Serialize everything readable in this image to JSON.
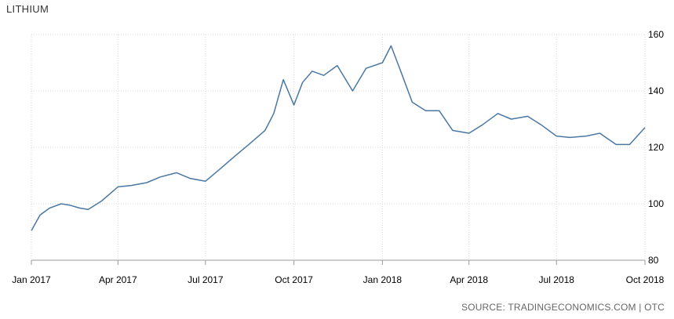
{
  "title": "LITHIUM",
  "source": "SOURCE: TRADINGECONOMICS.COM | OTC",
  "chart_data": {
    "type": "line",
    "title": "LITHIUM",
    "xlabel": "",
    "ylabel": "",
    "ylim": [
      80,
      160
    ],
    "y_ticks": [
      "80",
      "100",
      "120",
      "140",
      "160"
    ],
    "x_ticks": [
      "Jan 2017",
      "Apr 2017",
      "Jul 2017",
      "Oct 2017",
      "Jan 2018",
      "Apr 2018",
      "Jul 2018",
      "Oct 2018"
    ],
    "grid": true,
    "line_color": "#4a77a3",
    "series": [
      {
        "name": "",
        "x": [
          "2017-01-01",
          "2017-01-10",
          "2017-01-20",
          "2017-02-01",
          "2017-02-10",
          "2017-02-20",
          "2017-03-01",
          "2017-03-15",
          "2017-04-01",
          "2017-04-15",
          "2017-05-01",
          "2017-05-15",
          "2017-06-01",
          "2017-06-15",
          "2017-07-01",
          "2017-07-15",
          "2017-08-01",
          "2017-08-15",
          "2017-09-01",
          "2017-09-10",
          "2017-09-20",
          "2017-10-01",
          "2017-10-10",
          "2017-10-20",
          "2017-11-01",
          "2017-11-15",
          "2017-12-01",
          "2017-12-15",
          "2018-01-01",
          "2018-01-10",
          "2018-01-20",
          "2018-02-01",
          "2018-02-15",
          "2018-03-01",
          "2018-03-15",
          "2018-04-01",
          "2018-04-15",
          "2018-05-01",
          "2018-05-15",
          "2018-06-01",
          "2018-06-15",
          "2018-07-01",
          "2018-07-15",
          "2018-08-01",
          "2018-08-15",
          "2018-09-01",
          "2018-09-15",
          "2018-10-01"
        ],
        "y": [
          90.5,
          96,
          98.5,
          100,
          99.5,
          98.5,
          98,
          101,
          106,
          106.5,
          107.5,
          109.5,
          111,
          109,
          108,
          112,
          117,
          121,
          126,
          132,
          144,
          135,
          143,
          147,
          145.5,
          149,
          140,
          148,
          150,
          156,
          147,
          136,
          133,
          133,
          126,
          125,
          128,
          132,
          130,
          131,
          128,
          124,
          123.5,
          124,
          125,
          121,
          121,
          127
        ]
      }
    ]
  }
}
